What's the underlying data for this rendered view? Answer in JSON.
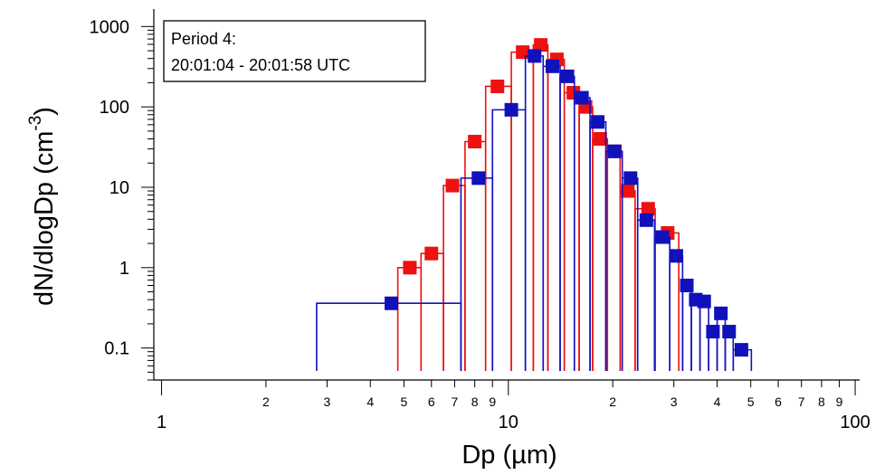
{
  "chart_data": {
    "type": "scatter",
    "annotation": {
      "line1": "Period 4:",
      "line2": "20:01:04 - 20:01:58 UTC"
    },
    "xlabel": "Dp (µm)",
    "ylabel": "dN/dlogDp (cm",
    "ylabel_sup": "-3",
    "ylabel_close": ")",
    "x_scale": "log",
    "y_scale": "log",
    "xlim": [
      0.95,
      103
    ],
    "ylim": [
      0.04,
      1650
    ],
    "x_major_ticks": [
      {
        "v": 1,
        "label": "1"
      },
      {
        "v": 10,
        "label": "10"
      },
      {
        "v": 100,
        "label": "100"
      }
    ],
    "x_minor_ticks": [
      {
        "v": 2,
        "label": "2"
      },
      {
        "v": 3,
        "label": "3"
      },
      {
        "v": 4,
        "label": "4"
      },
      {
        "v": 5,
        "label": "5"
      },
      {
        "v": 6,
        "label": "6"
      },
      {
        "v": 7,
        "label": "7"
      },
      {
        "v": 8,
        "label": "8"
      },
      {
        "v": 9,
        "label": "9"
      },
      {
        "v": 20,
        "label": "2"
      },
      {
        "v": 30,
        "label": "3"
      },
      {
        "v": 40,
        "label": "4"
      },
      {
        "v": 50,
        "label": "5"
      },
      {
        "v": 60,
        "label": "6"
      },
      {
        "v": 70,
        "label": "7"
      },
      {
        "v": 80,
        "label": "8"
      },
      {
        "v": 90,
        "label": "9"
      }
    ],
    "y_major_ticks": [
      {
        "v": 0.1,
        "label": "0.1"
      },
      {
        "v": 1,
        "label": "1"
      },
      {
        "v": 10,
        "label": "10"
      },
      {
        "v": 100,
        "label": "100"
      },
      {
        "v": 1000,
        "label": "1000"
      }
    ],
    "grid": false,
    "series": [
      {
        "color": "#ee1111",
        "points": [
          {
            "lo": 4.8,
            "hi": 5.6,
            "x": 5.2,
            "y": 1.0
          },
          {
            "lo": 5.6,
            "hi": 6.5,
            "x": 6.0,
            "y": 1.5
          },
          {
            "lo": 6.5,
            "hi": 7.5,
            "x": 6.9,
            "y": 10.5
          },
          {
            "lo": 7.5,
            "hi": 8.6,
            "x": 8.0,
            "y": 37
          },
          {
            "lo": 8.6,
            "hi": 10.2,
            "x": 9.3,
            "y": 180
          },
          {
            "lo": 10.2,
            "hi": 11.8,
            "x": 11.0,
            "y": 480
          },
          {
            "lo": 11.8,
            "hi": 13.0,
            "x": 12.4,
            "y": 590
          },
          {
            "lo": 13.0,
            "hi": 14.5,
            "x": 13.8,
            "y": 390
          },
          {
            "lo": 14.5,
            "hi": 16.0,
            "x": 15.4,
            "y": 150
          },
          {
            "lo": 16.0,
            "hi": 17.5,
            "x": 16.7,
            "y": 100
          },
          {
            "lo": 17.5,
            "hi": 19.3,
            "x": 18.4,
            "y": 40
          },
          {
            "lo": 19.3,
            "hi": 21.0,
            "x": 20.3,
            "y": 28
          },
          {
            "lo": 21.0,
            "hi": 23.2,
            "x": 22.1,
            "y": 9.0
          },
          {
            "lo": 23.2,
            "hi": 26.5,
            "x": 25.3,
            "y": 5.4
          },
          {
            "lo": 26.5,
            "hi": 31.0,
            "x": 28.8,
            "y": 2.7
          }
        ]
      },
      {
        "color": "#1111bb",
        "points": [
          {
            "lo": 2.8,
            "hi": 7.3,
            "x": 4.6,
            "y": 0.36
          },
          {
            "lo": 7.3,
            "hi": 9.0,
            "x": 8.2,
            "y": 13
          },
          {
            "lo": 9.0,
            "hi": 11.2,
            "x": 10.2,
            "y": 92
          },
          {
            "lo": 11.2,
            "hi": 12.6,
            "x": 11.9,
            "y": 430
          },
          {
            "lo": 12.6,
            "hi": 14.1,
            "x": 13.4,
            "y": 320
          },
          {
            "lo": 14.1,
            "hi": 15.5,
            "x": 14.8,
            "y": 240
          },
          {
            "lo": 15.5,
            "hi": 17.2,
            "x": 16.3,
            "y": 130
          },
          {
            "lo": 17.2,
            "hi": 19.1,
            "x": 18.1,
            "y": 65
          },
          {
            "lo": 19.1,
            "hi": 21.3,
            "x": 20.2,
            "y": 28
          },
          {
            "lo": 21.3,
            "hi": 23.6,
            "x": 22.5,
            "y": 13
          },
          {
            "lo": 23.6,
            "hi": 26.4,
            "x": 25.0,
            "y": 3.9
          },
          {
            "lo": 26.4,
            "hi": 29.2,
            "x": 27.8,
            "y": 2.4
          },
          {
            "lo": 29.2,
            "hi": 31.8,
            "x": 30.5,
            "y": 1.4
          },
          {
            "lo": 31.8,
            "hi": 33.7,
            "x": 32.7,
            "y": 0.6
          },
          {
            "lo": 33.7,
            "hi": 35.7,
            "x": 34.7,
            "y": 0.4
          },
          {
            "lo": 35.7,
            "hi": 37.8,
            "x": 36.7,
            "y": 0.38
          },
          {
            "lo": 37.8,
            "hi": 40.0,
            "x": 38.9,
            "y": 0.16
          },
          {
            "lo": 40.0,
            "hi": 42.2,
            "x": 41.0,
            "y": 0.27
          },
          {
            "lo": 42.2,
            "hi": 44.5,
            "x": 43.3,
            "y": 0.16
          },
          {
            "lo": 44.5,
            "hi": 50.2,
            "x": 47.0,
            "y": 0.095
          }
        ]
      }
    ]
  }
}
